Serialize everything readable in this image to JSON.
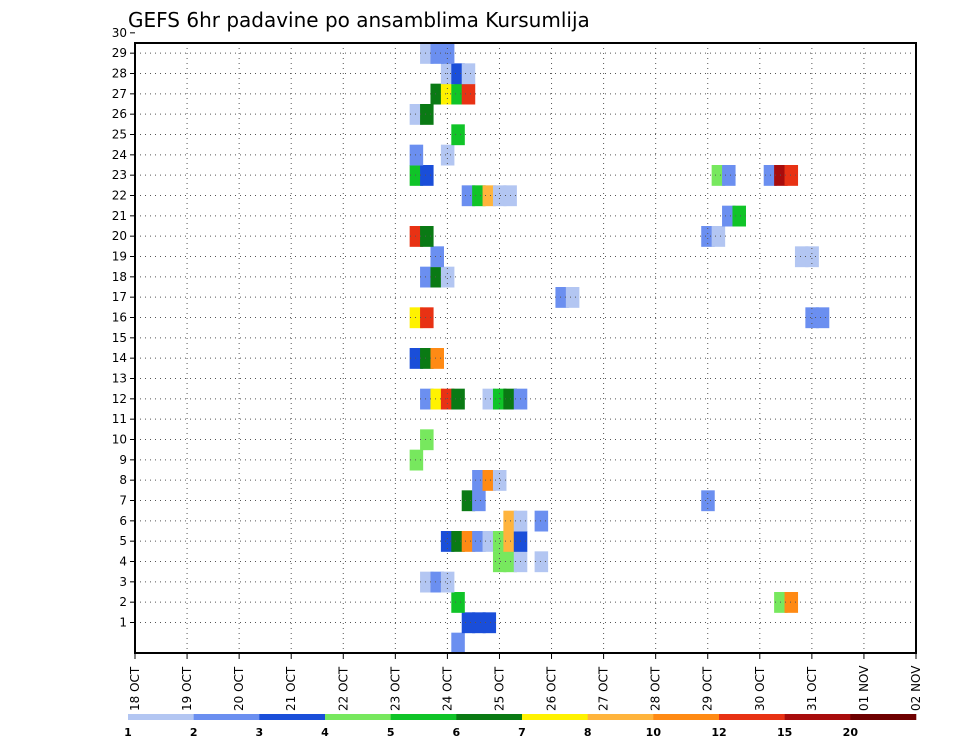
{
  "chart_data": {
    "type": "heatmap",
    "title": "GEFS 6hr padavine po ansamblima Kursumlija",
    "xlabel": "",
    "ylabel": "",
    "x_tick_labels": [
      "18 OCT",
      "19 OCT",
      "20 OCT",
      "21 OCT",
      "22 OCT",
      "23 OCT",
      "24 OCT",
      "25 OCT",
      "26 OCT",
      "27 OCT",
      "28 OCT",
      "29 OCT",
      "30 OCT",
      "31 OCT",
      "01 NOV",
      "02 NOV"
    ],
    "xlim_days": [
      0,
      15
    ],
    "y_tick_labels": [
      "1",
      "2",
      "3",
      "4",
      "5",
      "6",
      "7",
      "8",
      "9",
      "10",
      "11",
      "12",
      "13",
      "14",
      "15",
      "16",
      "17",
      "18",
      "19",
      "20",
      "21",
      "22",
      "23",
      "24",
      "25",
      "26",
      "27",
      "28",
      "29",
      "30"
    ],
    "ylim_members": [
      0,
      30
    ],
    "grid": true,
    "colorbar": {
      "labels": [
        "1",
        "2",
        "3",
        "4",
        "5",
        "6",
        "7",
        "8",
        "10",
        "12",
        "15",
        "20"
      ],
      "colors": [
        "#b3c6f2",
        "#6b8ff0",
        "#1a4ed9",
        "#77e85e",
        "#10c428",
        "#0a7a14",
        "#fff200",
        "#ffb43c",
        "#ff8a14",
        "#e83214",
        "#a80c0c",
        "#6e0000"
      ]
    },
    "time_step_hours": 6,
    "cells": [
      {
        "m": 0,
        "t": 24.2,
        "c": 2
      },
      {
        "m": 1,
        "t": 24.4,
        "c": 3
      },
      {
        "m": 1,
        "t": 24.6,
        "c": 3
      },
      {
        "m": 1,
        "t": 24.8,
        "c": 3
      },
      {
        "m": 2,
        "t": 24.2,
        "c": 5
      },
      {
        "m": 2,
        "t": 30.4,
        "c": 4
      },
      {
        "m": 2,
        "t": 30.6,
        "c": 9
      },
      {
        "m": 3,
        "t": 23.6,
        "c": 1
      },
      {
        "m": 3,
        "t": 23.8,
        "c": 2
      },
      {
        "m": 3,
        "t": 24.0,
        "c": 1
      },
      {
        "m": 4,
        "t": 25.0,
        "c": 4
      },
      {
        "m": 4,
        "t": 25.2,
        "c": 4
      },
      {
        "m": 4,
        "t": 25.4,
        "c": 1
      },
      {
        "m": 4,
        "t": 25.8,
        "c": 1
      },
      {
        "m": 5,
        "t": 24.0,
        "c": 3
      },
      {
        "m": 5,
        "t": 24.2,
        "c": 6
      },
      {
        "m": 5,
        "t": 24.4,
        "c": 9
      },
      {
        "m": 5,
        "t": 24.6,
        "c": 2
      },
      {
        "m": 5,
        "t": 24.8,
        "c": 1
      },
      {
        "m": 5,
        "t": 25.0,
        "c": 4
      },
      {
        "m": 5,
        "t": 25.2,
        "c": 8
      },
      {
        "m": 5,
        "t": 25.4,
        "c": 3
      },
      {
        "m": 6,
        "t": 25.2,
        "c": 8
      },
      {
        "m": 6,
        "t": 25.4,
        "c": 1
      },
      {
        "m": 6,
        "t": 25.8,
        "c": 2
      },
      {
        "m": 7,
        "t": 24.4,
        "c": 6
      },
      {
        "m": 7,
        "t": 24.6,
        "c": 2
      },
      {
        "m": 7,
        "t": 29.0,
        "c": 2
      },
      {
        "m": 8,
        "t": 24.6,
        "c": 2
      },
      {
        "m": 8,
        "t": 24.8,
        "c": 9
      },
      {
        "m": 8,
        "t": 25.0,
        "c": 1
      },
      {
        "m": 9,
        "t": 23.4,
        "c": 4
      },
      {
        "m": 10,
        "t": 23.6,
        "c": 4
      },
      {
        "m": 12,
        "t": 23.6,
        "c": 2
      },
      {
        "m": 12,
        "t": 23.8,
        "c": 7
      },
      {
        "m": 12,
        "t": 24.0,
        "c": 10
      },
      {
        "m": 12,
        "t": 24.2,
        "c": 6
      },
      {
        "m": 12,
        "t": 24.8,
        "c": 1
      },
      {
        "m": 12,
        "t": 25.0,
        "c": 5
      },
      {
        "m": 12,
        "t": 25.2,
        "c": 6
      },
      {
        "m": 12,
        "t": 25.4,
        "c": 2
      },
      {
        "m": 14,
        "t": 23.4,
        "c": 3
      },
      {
        "m": 14,
        "t": 23.6,
        "c": 6
      },
      {
        "m": 14,
        "t": 23.8,
        "c": 9
      },
      {
        "m": 16,
        "t": 23.4,
        "c": 7
      },
      {
        "m": 16,
        "t": 23.6,
        "c": 10
      },
      {
        "m": 16,
        "t": 31.0,
        "c": 2
      },
      {
        "m": 16,
        "t": 31.2,
        "c": 2
      },
      {
        "m": 17,
        "t": 26.2,
        "c": 2
      },
      {
        "m": 17,
        "t": 26.4,
        "c": 1
      },
      {
        "m": 18,
        "t": 23.6,
        "c": 2
      },
      {
        "m": 18,
        "t": 23.8,
        "c": 6
      },
      {
        "m": 18,
        "t": 24.0,
        "c": 1
      },
      {
        "m": 19,
        "t": 23.8,
        "c": 2
      },
      {
        "m": 19,
        "t": 30.8,
        "c": 1
      },
      {
        "m": 19,
        "t": 31.0,
        "c": 1
      },
      {
        "m": 20,
        "t": 23.4,
        "c": 10
      },
      {
        "m": 20,
        "t": 23.6,
        "c": 6
      },
      {
        "m": 20,
        "t": 29.0,
        "c": 2
      },
      {
        "m": 20,
        "t": 29.2,
        "c": 1
      },
      {
        "m": 21,
        "t": 29.4,
        "c": 2
      },
      {
        "m": 21,
        "t": 29.6,
        "c": 5
      },
      {
        "m": 22,
        "t": 24.4,
        "c": 2
      },
      {
        "m": 22,
        "t": 24.6,
        "c": 5
      },
      {
        "m": 22,
        "t": 24.8,
        "c": 8
      },
      {
        "m": 22,
        "t": 25.0,
        "c": 1
      },
      {
        "m": 22,
        "t": 25.2,
        "c": 1
      },
      {
        "m": 23,
        "t": 23.4,
        "c": 5
      },
      {
        "m": 23,
        "t": 23.6,
        "c": 3
      },
      {
        "m": 23,
        "t": 29.2,
        "c": 4
      },
      {
        "m": 23,
        "t": 29.4,
        "c": 2
      },
      {
        "m": 23,
        "t": 30.2,
        "c": 2
      },
      {
        "m": 23,
        "t": 30.4,
        "c": 11
      },
      {
        "m": 23,
        "t": 30.6,
        "c": 10
      },
      {
        "m": 24,
        "t": 23.4,
        "c": 2
      },
      {
        "m": 24,
        "t": 24.0,
        "c": 1
      },
      {
        "m": 25,
        "t": 24.2,
        "c": 5
      },
      {
        "m": 26,
        "t": 23.4,
        "c": 1
      },
      {
        "m": 26,
        "t": 23.6,
        "c": 6
      },
      {
        "m": 27,
        "t": 23.8,
        "c": 6
      },
      {
        "m": 27,
        "t": 24.0,
        "c": 7
      },
      {
        "m": 27,
        "t": 24.2,
        "c": 5
      },
      {
        "m": 27,
        "t": 24.4,
        "c": 10
      },
      {
        "m": 28,
        "t": 24.0,
        "c": 1
      },
      {
        "m": 28,
        "t": 24.2,
        "c": 3
      },
      {
        "m": 28,
        "t": 24.4,
        "c": 1
      },
      {
        "m": 29,
        "t": 23.6,
        "c": 1
      },
      {
        "m": 29,
        "t": 23.8,
        "c": 2
      },
      {
        "m": 29,
        "t": 24.0,
        "c": 2
      }
    ],
    "colors": {
      "axis": "#000000",
      "grid": "#555555"
    }
  }
}
